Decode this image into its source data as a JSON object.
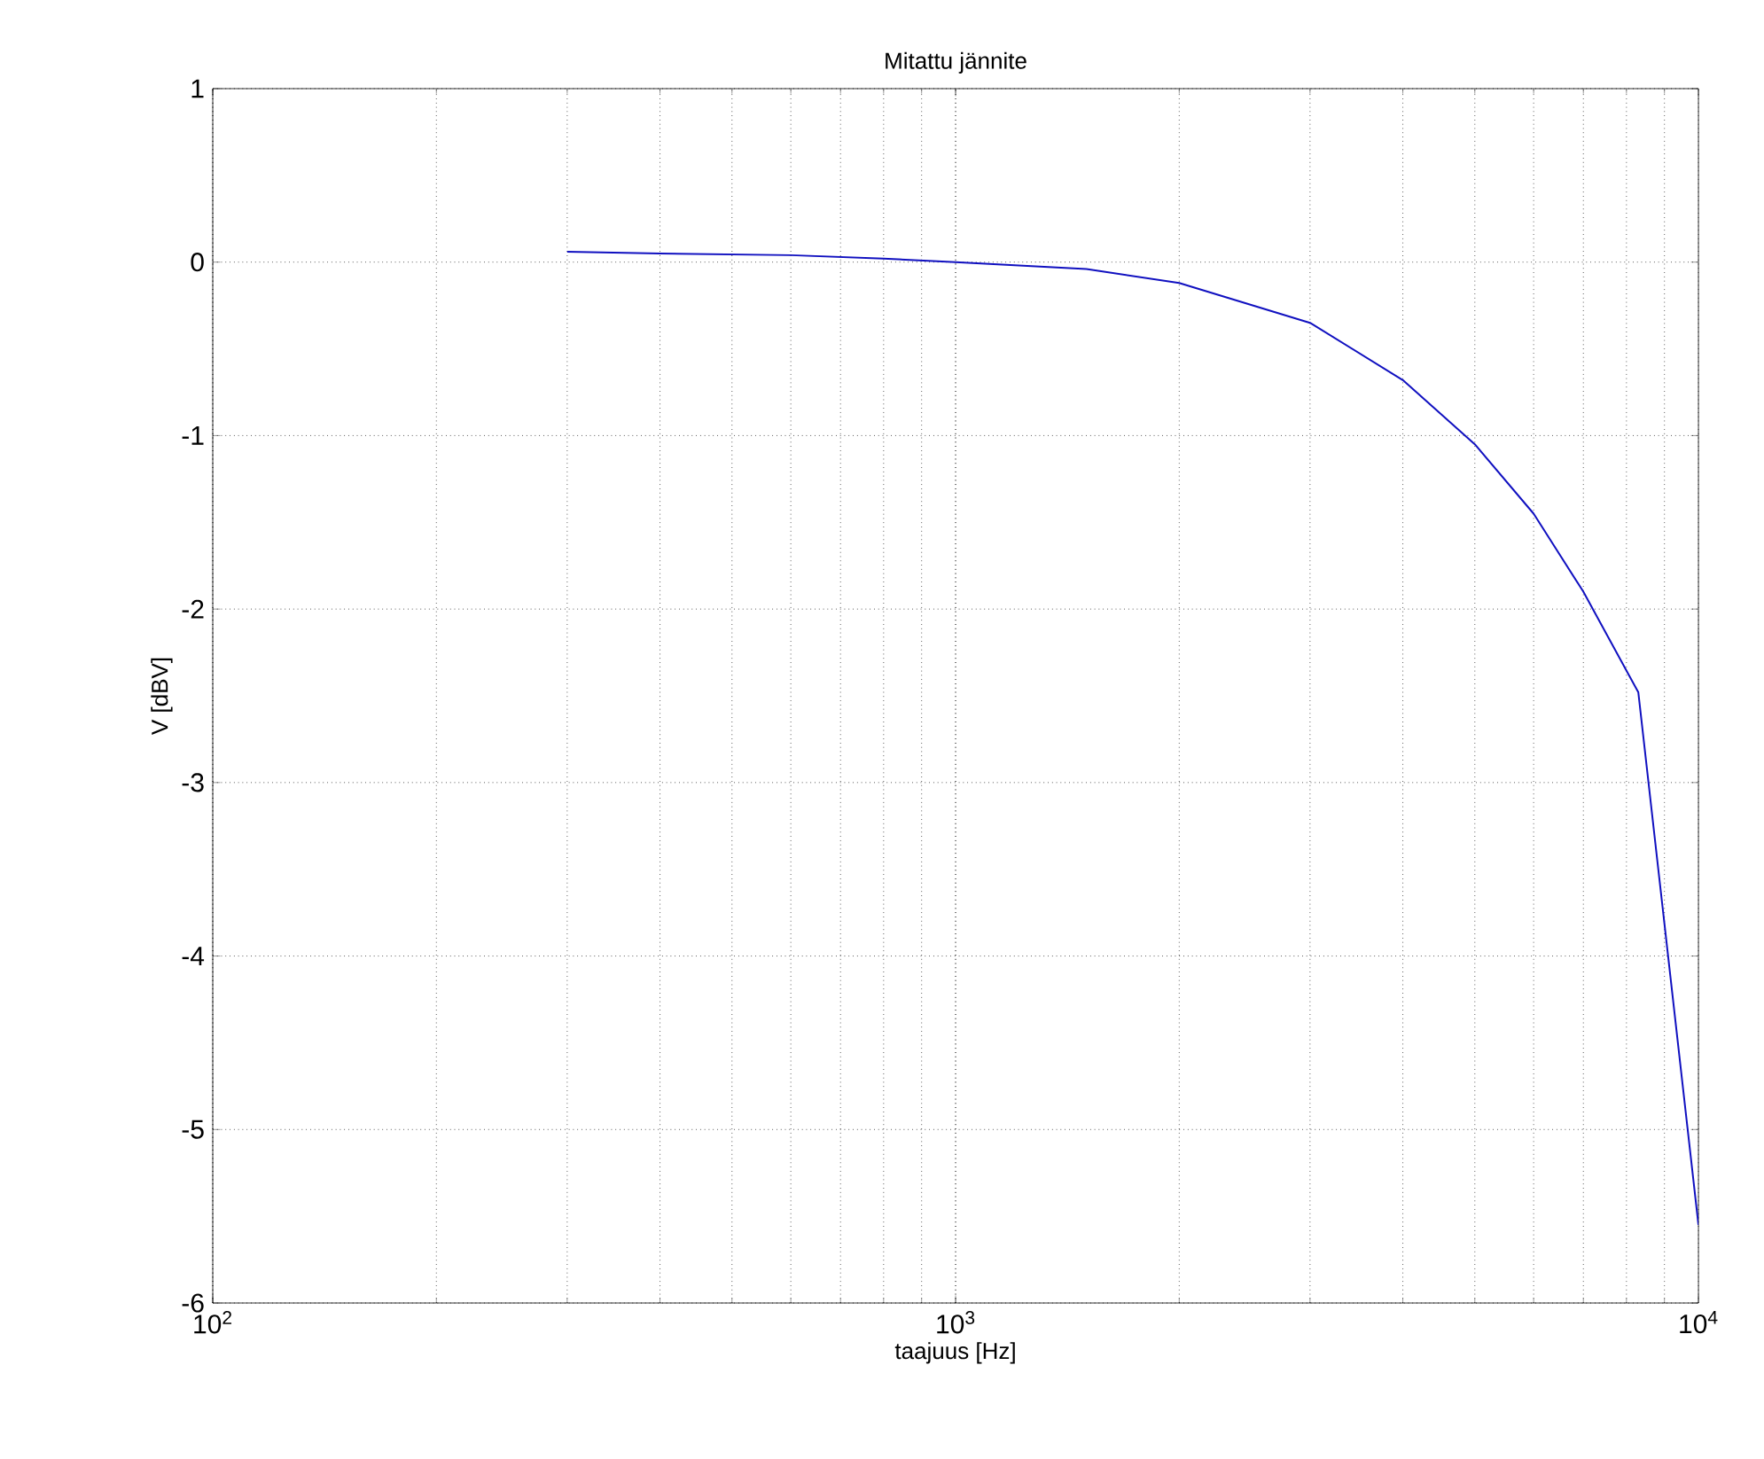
{
  "chart_data": {
    "type": "line",
    "title": "Mitattu jännite",
    "xlabel": "taajuus [Hz]",
    "ylabel": "V [dBV]",
    "log": "x",
    "grid": true,
    "line_style": "solid",
    "color": "#1010c0",
    "x": [
      300,
      400,
      600,
      800,
      1000,
      1500,
      2000,
      3000,
      4000,
      5000,
      6000,
      7000,
      8300,
      10000
    ],
    "values": [
      0.06,
      0.05,
      0.04,
      0.02,
      0.0,
      -0.04,
      -0.12,
      -0.35,
      -0.68,
      -1.05,
      -1.45,
      -1.9,
      -2.48,
      -5.55
    ],
    "xlim": [
      100,
      10000
    ],
    "ylim": [
      -6,
      1
    ],
    "xticks": [
      {
        "value": 100,
        "label": "10$^{2}$"
      },
      {
        "value": 1000,
        "label": "10$^{3}$"
      },
      {
        "value": 10000,
        "label": "10$^{4}$"
      }
    ],
    "yticks": [
      -6,
      -5,
      -4,
      -3,
      -2,
      -1,
      0,
      1
    ]
  }
}
